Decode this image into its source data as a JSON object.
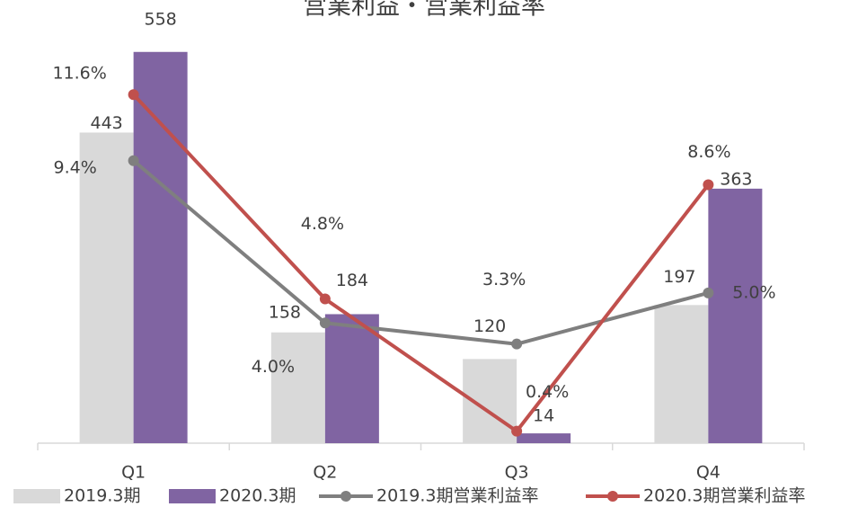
{
  "chart_data": {
    "type": "bar-line",
    "title": "営業利益・営業利益率",
    "categories": [
      "Q1",
      "Q2",
      "Q3",
      "Q4"
    ],
    "series": [
      {
        "name": "2019.3期",
        "kind": "bar",
        "color": "#d9d9d9",
        "values": [
          443,
          158,
          120,
          197
        ]
      },
      {
        "name": "2020.3期",
        "kind": "bar",
        "color": "#8064a2",
        "values": [
          558,
          184,
          14,
          363
        ]
      },
      {
        "name": "2019.3期営業利益率",
        "kind": "line",
        "axis": "y2",
        "color": "#7f7f7f",
        "values": [
          9.4,
          4.0,
          3.3,
          5.0
        ],
        "value_labels": [
          "9.4%",
          "4.0%",
          "3.3%",
          "5.0%"
        ]
      },
      {
        "name": "2020.3期営業利益率",
        "kind": "line",
        "axis": "y2",
        "color": "#c0504d",
        "values": [
          11.6,
          4.8,
          0.4,
          8.6
        ],
        "value_labels": [
          "11.6%",
          "4.8%",
          "0.4%",
          "8.6%"
        ]
      }
    ],
    "ylim": [
      0,
      600
    ],
    "y2lim": [
      0,
      14
    ],
    "legend": "bottom"
  }
}
